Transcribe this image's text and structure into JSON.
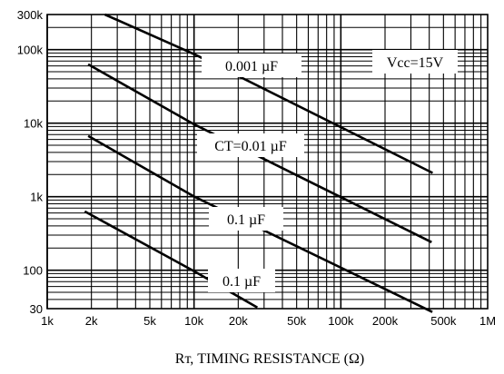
{
  "chart_data": {
    "type": "line",
    "title": "",
    "xlabel": "Rт, TIMING RESISTANCE (Ω)",
    "ylabel": "",
    "x_scale": "log",
    "y_scale": "log",
    "xlim": [
      1000,
      1000000
    ],
    "ylim": [
      30,
      300000
    ],
    "grid": true,
    "x_tick_values": [
      1000,
      2000,
      5000,
      10000,
      20000,
      50000,
      100000,
      200000,
      500000,
      1000000
    ],
    "x_tick_labels": [
      "1k",
      "2k",
      "5k",
      "10k",
      "20k",
      "50k",
      "100k",
      "200k",
      "500k",
      "1M"
    ],
    "y_tick_values": [
      30,
      100,
      1000,
      10000,
      100000,
      300000
    ],
    "y_tick_labels": [
      "30",
      "100",
      "1k",
      "10k",
      "100k",
      "300k"
    ],
    "annotations": [
      "0.001 µF",
      "CT=0.01 µF",
      "0.1 µF",
      "0.1 µF",
      "Vcc=15V"
    ],
    "series": [
      {
        "label_index": 0,
        "x": [
          2470,
          10270,
          422000
        ],
        "y": [
          300000,
          85000,
          2100
        ]
      },
      {
        "label_index": 1,
        "x": [
          1900,
          10050,
          415000
        ],
        "y": [
          63000,
          9600,
          240
        ]
      },
      {
        "label_index": 2,
        "x": [
          1900,
          9950,
          420000
        ],
        "y": [
          6700,
          1010,
          27
        ]
      },
      {
        "label_index": 3,
        "x": [
          1800,
          10100,
          27000
        ],
        "y": [
          630,
          96,
          31
        ]
      }
    ]
  },
  "colors": {
    "line": "#000000",
    "grid": "#000000",
    "background": "#ffffff"
  }
}
